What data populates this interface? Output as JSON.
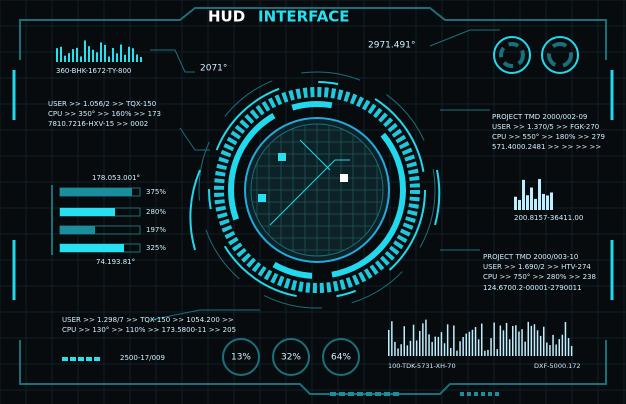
{
  "header": {
    "title_part1": "HUD",
    "title_part2": "INTERFACE"
  },
  "top_left_code": "360-BHK-1672-TY-800",
  "top_readout": "2071°",
  "top_right_readout": "2971.491°",
  "left_block": [
    "USER >> 1.056/2 >> TQX-150",
    "CPU >> 350° >> 160% >> 173",
    "7810.7216-HXV-15 >> 0002"
  ],
  "right_block": [
    "PROJECT TMD 2000/002-09",
    "USER >> 1.370/5 >> FGK-270",
    "CPU >> 550° >> 180% >> 279",
    "571.4000.2481 >> >> >> >>"
  ],
  "bars_panel": {
    "top_label": "178.053.001°",
    "labels": [
      "375%",
      "280%",
      "197%",
      "325%"
    ],
    "bottom_label": "74.193.81°"
  },
  "right_chart_label": "200.8157-36411.00",
  "right_lower_block": [
    "PROJECT TMD 2000/003-10",
    "USER >> 1.690/2 >> HTV-274",
    "CPU >> 750° >> 280% >> 238",
    "124.6700.2-00001-2790011"
  ],
  "bottom_left_block": [
    "USER >> 1.298/7 >> TQX-150 >> 1054.200 >>",
    "CPU >> 130° >> 110% >> 173.5800-11 >> 205"
  ],
  "bottom_code": "2500-17/009",
  "gauges": [
    "13%",
    "32%",
    "64%"
  ],
  "wave_labels": [
    "100-TDK-5731-XH-70",
    "DXF-5000.172"
  ]
}
